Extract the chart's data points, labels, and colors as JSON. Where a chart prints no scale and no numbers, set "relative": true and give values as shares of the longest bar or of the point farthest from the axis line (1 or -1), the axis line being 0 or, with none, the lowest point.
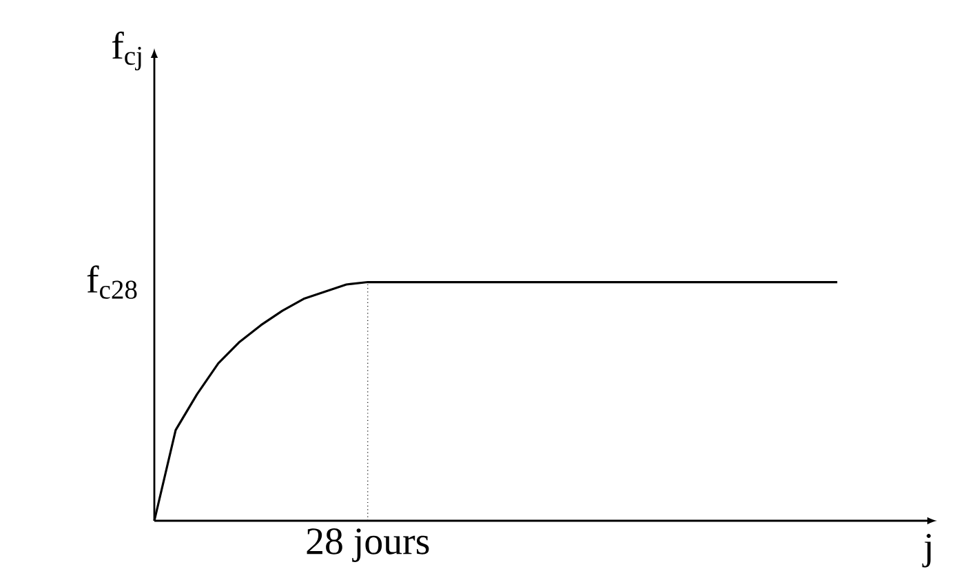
{
  "chart_data": {
    "type": "line",
    "relative": true,
    "xlabel": "j",
    "categories": [
      null,
      null,
      null,
      null,
      null,
      null,
      null,
      null,
      null,
      null,
      null,
      null,
      null,
      null,
      null,
      null,
      null,
      null,
      null,
      null,
      null,
      null,
      null,
      null,
      null,
      null,
      null,
      null,
      null,
      null,
      null,
      null,
      null
    ],
    "series": [
      {
        "color": "#000000",
        "values": [
          0,
          0.38,
          0.53,
          0.66,
          0.75,
          0.82,
          0.88,
          0.93,
          0.96,
          0.99,
          1.0,
          1.0,
          1.0,
          1.0,
          1.0,
          1.0,
          1.0,
          1.0,
          1.0,
          1.0,
          1.0,
          1.0,
          1.0,
          1.0,
          1.0,
          1.0,
          1.0,
          1.0,
          1.0,
          1.0,
          1.0,
          1.0,
          1.0
        ]
      }
    ],
    "ref_lines": [
      {
        "axis": "x",
        "label": "28 jours",
        "line_style": "dotted"
      }
    ],
    "annotations": [
      "f$_{c28}$",
      "f$_{cj}$"
    ],
    "marker": "none"
  }
}
